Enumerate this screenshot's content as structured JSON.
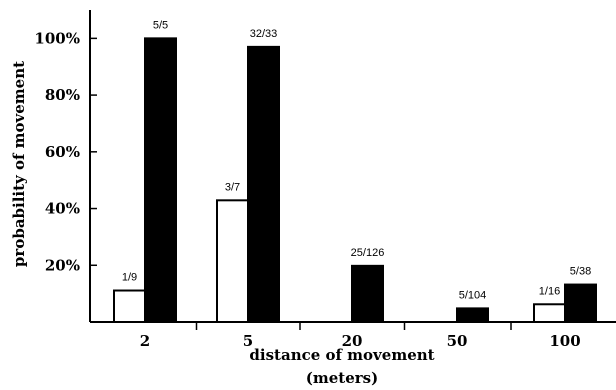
{
  "chart_data": {
    "type": "bar",
    "xlabel": "distance of movement",
    "xlabel_line2": "(meters)",
    "ylabel": "probability of movement",
    "ylim": [
      0,
      1.1
    ],
    "yticks": [
      0.2,
      0.4,
      0.6,
      0.8,
      1.0
    ],
    "ytick_labels": [
      "20%",
      "40%",
      "60%",
      "80%",
      "100%"
    ],
    "categories": [
      "2",
      "5",
      "20",
      "50",
      "100"
    ],
    "series": [
      {
        "fill": "white",
        "values": [
          0.111,
          0.429,
          null,
          null,
          0.0625
        ],
        "labels": [
          "1/9",
          "3/7",
          "",
          "",
          "1/16"
        ]
      },
      {
        "fill": "black",
        "values": [
          1.0,
          0.97,
          0.198,
          0.048,
          0.132
        ],
        "labels": [
          "5/5",
          "32/33",
          "25/126",
          "5/104",
          "5/38"
        ]
      }
    ]
  }
}
